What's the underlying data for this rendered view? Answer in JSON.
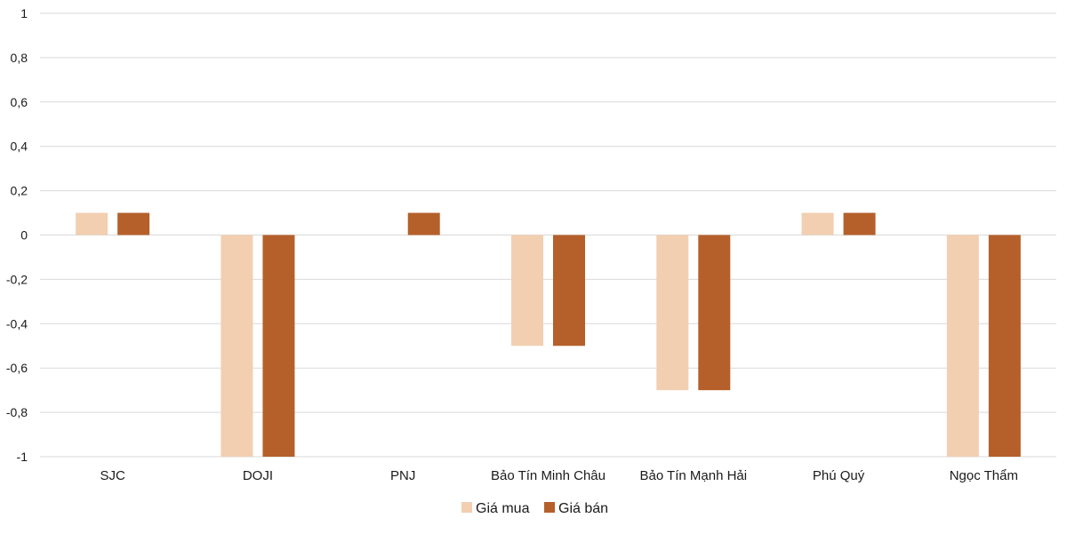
{
  "chart_data": {
    "type": "bar",
    "title": "",
    "xlabel": "",
    "ylabel": "",
    "ylim": [
      -1,
      1
    ],
    "yticks": [
      1,
      0.8,
      0.6,
      0.4,
      0.2,
      0,
      -0.2,
      -0.4,
      -0.6,
      -0.8,
      -1
    ],
    "ytick_labels": [
      "1",
      "0,8",
      "0,6",
      "0,4",
      "0,2",
      "0",
      "-0,2",
      "-0,4",
      "-0,6",
      "-0,8",
      "-1"
    ],
    "grid": true,
    "legend_position": "bottom",
    "categories": [
      "SJC",
      "DOJI",
      "PNJ",
      "Bảo Tín Minh Châu",
      "Bảo Tín Mạnh Hải",
      "Phú Quý",
      "Ngọc Thẩm"
    ],
    "series": [
      {
        "name": "Giá mua",
        "color": "#f2cfb1",
        "values": [
          0.1,
          -1,
          0,
          -0.5,
          -0.7,
          0.1,
          -1
        ]
      },
      {
        "name": "Giá bán",
        "color": "#b5602a",
        "values": [
          0.1,
          -1,
          0.1,
          -0.5,
          -0.7,
          0.1,
          -1
        ]
      }
    ]
  }
}
